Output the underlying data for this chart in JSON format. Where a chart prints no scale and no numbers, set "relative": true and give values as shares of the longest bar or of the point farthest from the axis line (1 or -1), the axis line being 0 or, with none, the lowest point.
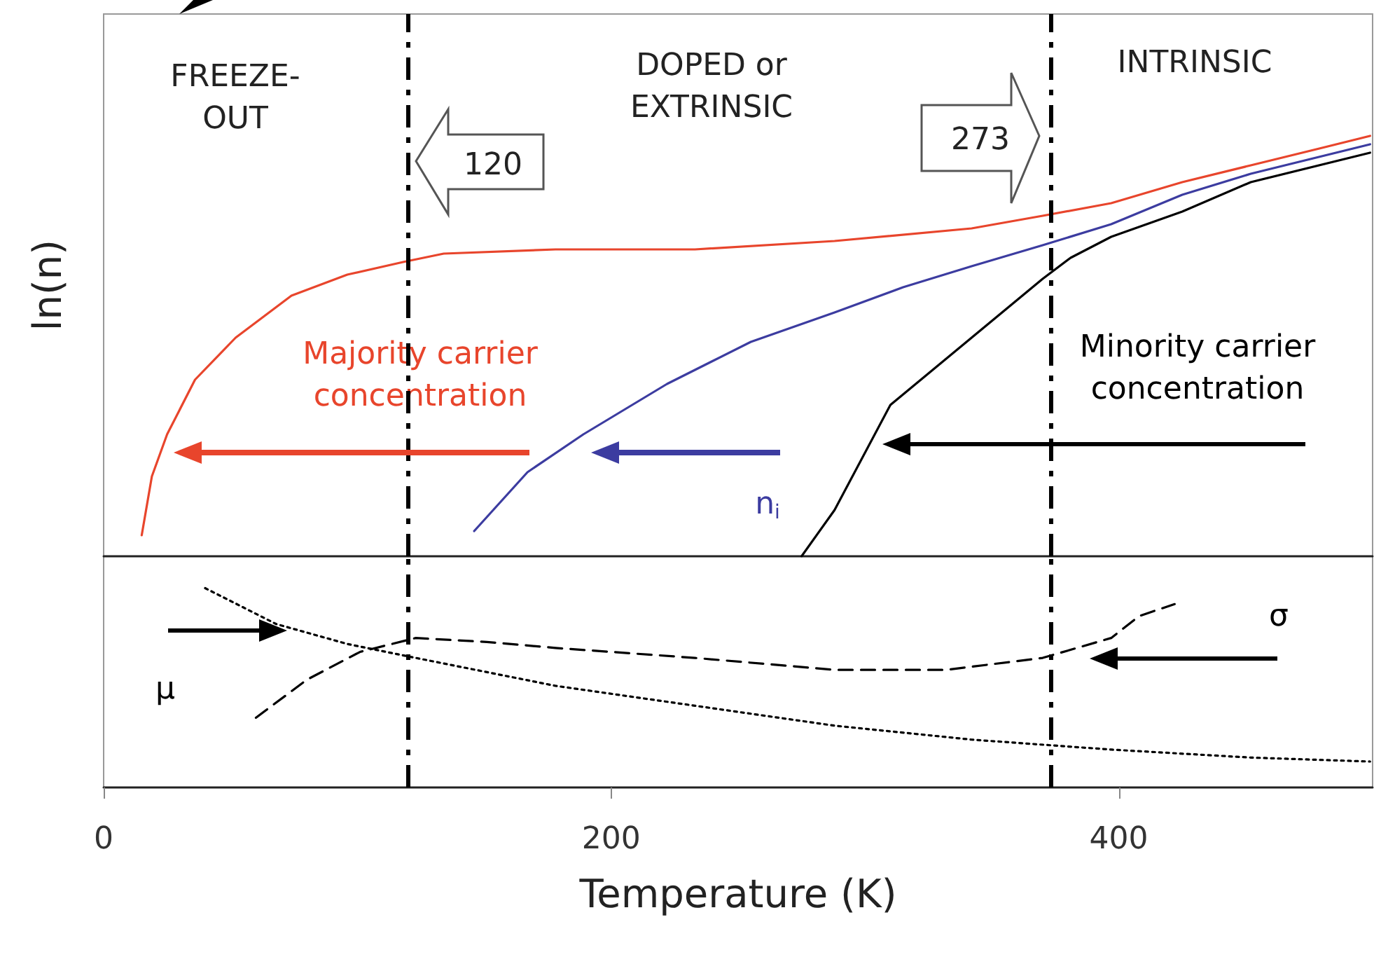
{
  "chart_data": [
    {
      "type": "line",
      "ylabel": "ln(n)",
      "relative": true,
      "xlim": [
        0,
        500
      ],
      "tick_labels": false,
      "marker": "none",
      "series": [
        {
          "name": "Majority carrier\nconcentration",
          "color": "#e8452c",
          "x": [
            15,
            19,
            25,
            36,
            52,
            74,
            96,
            118,
            134,
            178,
            233,
            288,
            342,
            370,
            397,
            425,
            452,
            479,
            499
          ],
          "values": [
            0.05,
            0.19,
            0.29,
            0.42,
            0.52,
            0.62,
            0.67,
            0.7,
            0.72,
            0.73,
            0.73,
            0.75,
            0.78,
            0.81,
            0.84,
            0.89,
            0.93,
            0.97,
            1.0
          ]
        },
        {
          "name": "n$_{i}$",
          "color": "#3c3ca0",
          "x": [
            146,
            167,
            189,
            222,
            255,
            288,
            315,
            342,
            370,
            397,
            425,
            452,
            499
          ],
          "values": [
            0.06,
            0.2,
            0.29,
            0.41,
            0.51,
            0.58,
            0.64,
            0.69,
            0.74,
            0.79,
            0.86,
            0.91,
            0.98
          ]
        },
        {
          "name": "Minority carrier\nconcentration",
          "color": "#000000",
          "x": [
            275,
            288,
            310,
            342,
            370,
            381,
            397,
            425,
            452,
            499
          ],
          "values": [
            0,
            0.11,
            0.36,
            0.52,
            0.66,
            0.71,
            0.76,
            0.82,
            0.89,
            0.96
          ]
        }
      ],
      "ref_lines": [
        {
          "axis": "x",
          "value": 120,
          "color": "#000000",
          "line_style": "dashed"
        },
        {
          "axis": "x",
          "value": 373,
          "color": "#000000",
          "line_style": "dashed"
        }
      ],
      "annotations": [
        "FREEZE-\nOUT",
        "DOPED or\nEXTRINSIC",
        "INTRINSIC",
        "120",
        "273"
      ]
    },
    {
      "type": "line",
      "xlabel": "Temperature (K)",
      "relative": true,
      "xlim": [
        0,
        500
      ],
      "xticks": [
        0,
        200,
        400
      ],
      "tick_labels": "x",
      "marker": "none",
      "series": [
        {
          "name": "σ",
          "color": "#000000",
          "line_style": "dashed",
          "x": [
            60,
            80,
            101,
            123,
            151,
            178,
            233,
            288,
            332,
            370,
            397,
            408,
            422
          ],
          "values": [
            0.35,
            0.54,
            0.68,
            0.75,
            0.73,
            0.7,
            0.65,
            0.59,
            0.59,
            0.65,
            0.75,
            0.86,
            0.92
          ]
        },
        {
          "name": "μ",
          "color": "#000000",
          "line_style": "dotted",
          "x": [
            40,
            68,
            96,
            123,
            178,
            233,
            288,
            342,
            397,
            452,
            499
          ],
          "values": [
            1.0,
            0.82,
            0.72,
            0.65,
            0.51,
            0.41,
            0.31,
            0.24,
            0.19,
            0.15,
            0.13
          ]
        }
      ],
      "ref_lines": [
        {
          "axis": "x",
          "value": 120,
          "color": "#000000",
          "line_style": "dashed"
        },
        {
          "axis": "x",
          "value": 373,
          "color": "#000000",
          "line_style": "dashed"
        }
      ]
    }
  ]
}
